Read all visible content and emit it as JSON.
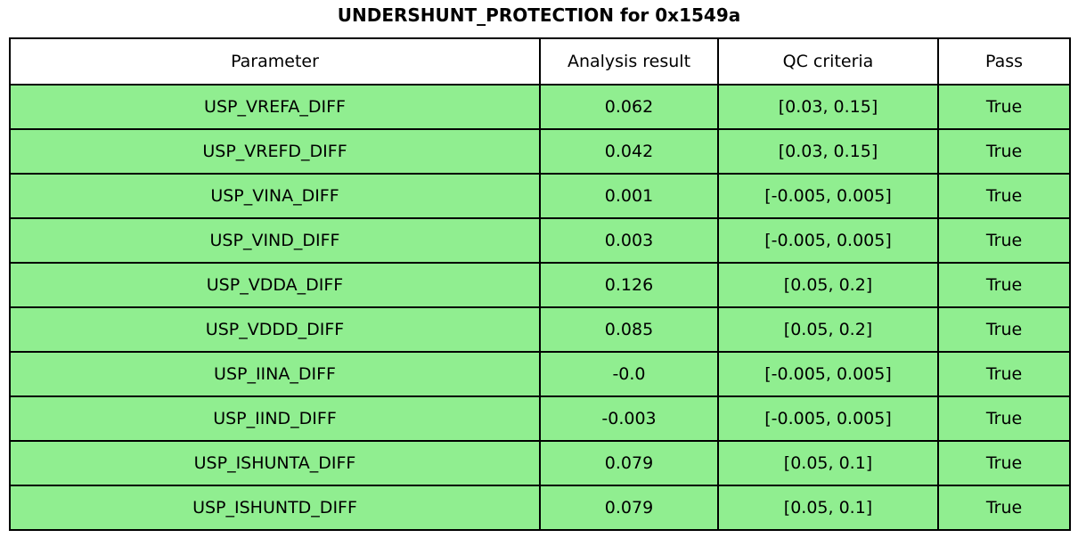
{
  "title": "UNDERSHUNT_PROTECTION for 0x1549a",
  "chart_data": {
    "type": "table",
    "title": "UNDERSHUNT_PROTECTION for 0x1549a",
    "columns": [
      "Parameter",
      "Analysis result",
      "QC criteria",
      "Pass"
    ],
    "rows": [
      [
        "USP_VREFA_DIFF",
        "0.062",
        "[0.03, 0.15]",
        "True"
      ],
      [
        "USP_VREFD_DIFF",
        "0.042",
        "[0.03, 0.15]",
        "True"
      ],
      [
        "USP_VINA_DIFF",
        "0.001",
        "[-0.005, 0.005]",
        "True"
      ],
      [
        "USP_VIND_DIFF",
        "0.003",
        "[-0.005, 0.005]",
        "True"
      ],
      [
        "USP_VDDA_DIFF",
        "0.126",
        "[0.05, 0.2]",
        "True"
      ],
      [
        "USP_VDDD_DIFF",
        "0.085",
        "[0.05, 0.2]",
        "True"
      ],
      [
        "USP_IINA_DIFF",
        "-0.0",
        "[-0.005, 0.005]",
        "True"
      ],
      [
        "USP_IIND_DIFF",
        "-0.003",
        "[-0.005, 0.005]",
        "True"
      ],
      [
        "USP_ISHUNTA_DIFF",
        "0.079",
        "[0.05, 0.1]",
        "True"
      ],
      [
        "USP_ISHUNTD_DIFF",
        "0.079",
        "[0.05, 0.1]",
        "True"
      ]
    ],
    "all_pass": true
  },
  "style": {
    "row_bg": "#90EE90",
    "header_bg": "#ffffff",
    "border_color": "#000000",
    "text_color": "#000000"
  }
}
